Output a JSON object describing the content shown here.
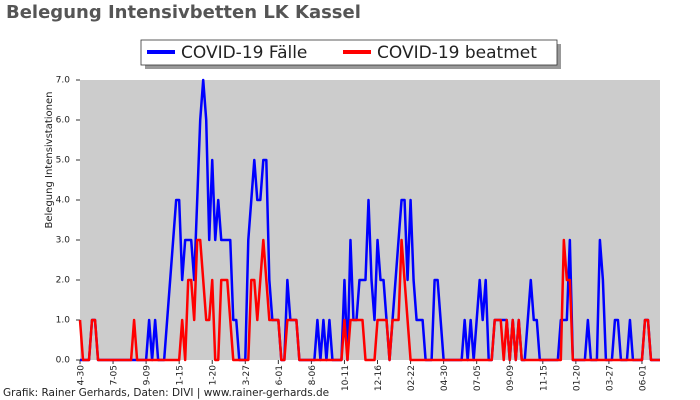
{
  "chart_data": {
    "type": "line",
    "title": "Belegung Intensivbetten LK Kassel",
    "y_label": "Belegung Intensivstationen",
    "footer": "Grafik: Rainer Gerhards, Daten: DIVI | www.rainer-gerhards.de",
    "ylim": [
      0,
      7
    ],
    "yticks": [
      {
        "value": 0,
        "label": "0.0"
      },
      {
        "value": 1,
        "label": "1.0"
      },
      {
        "value": 2,
        "label": "2.0"
      },
      {
        "value": 3,
        "label": "3.0"
      },
      {
        "value": 4,
        "label": "4.0"
      },
      {
        "value": 5,
        "label": "5.0"
      },
      {
        "value": 6,
        "label": "6.0"
      },
      {
        "value": 7,
        "label": "7.0"
      }
    ],
    "grid": false,
    "legend": "top",
    "categories": [
      "04-30",
      null,
      null,
      null,
      null,
      null,
      null,
      null,
      null,
      null,
      null,
      "07-05",
      null,
      null,
      null,
      null,
      null,
      null,
      null,
      null,
      null,
      null,
      "09-09",
      null,
      null,
      null,
      null,
      null,
      null,
      null,
      null,
      null,
      null,
      "11-15",
      null,
      null,
      null,
      null,
      null,
      null,
      null,
      null,
      null,
      null,
      "01-20",
      null,
      null,
      null,
      null,
      null,
      null,
      null,
      null,
      null,
      null,
      "03-27",
      null,
      null,
      null,
      null,
      null,
      null,
      null,
      null,
      null,
      null,
      "06-01",
      null,
      null,
      null,
      null,
      null,
      null,
      null,
      null,
      null,
      null,
      "08-06",
      null,
      null,
      null,
      null,
      null,
      null,
      null,
      null,
      null,
      null,
      "10-11",
      null,
      null,
      null,
      null,
      null,
      null,
      null,
      null,
      null,
      null,
      "12-16",
      null,
      null,
      null,
      null,
      null,
      null,
      null,
      null,
      null,
      null,
      "02-22",
      null,
      null,
      null,
      null,
      null,
      null,
      null,
      null,
      null,
      null,
      "04-30",
      null,
      null,
      null,
      null,
      null,
      null,
      null,
      null,
      null,
      null,
      "07-05",
      null,
      null,
      null,
      null,
      null,
      null,
      null,
      null,
      null,
      null,
      "09-09",
      null,
      null,
      null,
      null,
      null,
      null,
      null,
      null,
      null,
      null,
      "11-15",
      null,
      null,
      null,
      null,
      null,
      null,
      null,
      null,
      null,
      null,
      "01-20",
      null,
      null,
      null,
      null,
      null,
      null,
      null,
      null,
      null,
      null,
      "03-27",
      null,
      null,
      null,
      null,
      null,
      null,
      null,
      null,
      null,
      null,
      "06-01",
      null,
      null,
      null,
      null,
      null,
      null
    ],
    "series": [
      {
        "name": "COVID-19 Fälle",
        "color": "#0000ff",
        "values": [
          0,
          0,
          0,
          0,
          1,
          1,
          0,
          0,
          0,
          0,
          0,
          0,
          0,
          0,
          0,
          0,
          0,
          0,
          0,
          0,
          0,
          0,
          0,
          1,
          0,
          1,
          0,
          0,
          0,
          1,
          2,
          3,
          4,
          4,
          2,
          3,
          3,
          3,
          2,
          4,
          6,
          7,
          6,
          3,
          5,
          3,
          4,
          3,
          3,
          3,
          3,
          1,
          1,
          0,
          0,
          0,
          3,
          4,
          5,
          4,
          4,
          5,
          5,
          2,
          1,
          1,
          1,
          0,
          0,
          2,
          1,
          1,
          1,
          0,
          0,
          0,
          0,
          0,
          0,
          1,
          0,
          1,
          0,
          1,
          0,
          0,
          0,
          0,
          2,
          0,
          3,
          1,
          1,
          2,
          2,
          2,
          4,
          2,
          1,
          3,
          2,
          2,
          1,
          0,
          1,
          2,
          3,
          4,
          4,
          2,
          4,
          2,
          1,
          1,
          1,
          0,
          0,
          0,
          2,
          2,
          1,
          0,
          0,
          0,
          0,
          0,
          0,
          0,
          1,
          0,
          1,
          0,
          1,
          2,
          1,
          2,
          0,
          0,
          1,
          1,
          1,
          1,
          1,
          0,
          1,
          0,
          1,
          0,
          0,
          1,
          2,
          1,
          1,
          0,
          0,
          0,
          0,
          0,
          0,
          0,
          1,
          1,
          1,
          3,
          0,
          0,
          0,
          0,
          0,
          1,
          0,
          0,
          0,
          3,
          2,
          0,
          0,
          0,
          1,
          1,
          0,
          0,
          0,
          1,
          0,
          0,
          0,
          0,
          1,
          1,
          0,
          0,
          0,
          0
        ]
      },
      {
        "name": "COVID-19 beatmet",
        "color": "#ff0000",
        "values": [
          1,
          0,
          0,
          0,
          1,
          1,
          0,
          0,
          0,
          0,
          0,
          0,
          0,
          0,
          0,
          0,
          0,
          0,
          1,
          0,
          0,
          0,
          0,
          0,
          0,
          0,
          0,
          0,
          0,
          0,
          0,
          0,
          0,
          0,
          1,
          0,
          2,
          2,
          1,
          3,
          3,
          2,
          1,
          1,
          2,
          0,
          0,
          2,
          2,
          2,
          1,
          0,
          0,
          0,
          0,
          0,
          0,
          2,
          2,
          1,
          2,
          3,
          2,
          1,
          1,
          1,
          1,
          0,
          0,
          1,
          1,
          1,
          1,
          0,
          0,
          0,
          0,
          0,
          0,
          0,
          0,
          0,
          0,
          0,
          0,
          0,
          0,
          0,
          1,
          0,
          1,
          1,
          1,
          1,
          1,
          0,
          0,
          0,
          0,
          1,
          1,
          1,
          1,
          0,
          1,
          1,
          1,
          3,
          2,
          1,
          0,
          0,
          0,
          0,
          0,
          0,
          0,
          0,
          0,
          0,
          0,
          0,
          0,
          0,
          0,
          0,
          0,
          0,
          0,
          0,
          0,
          0,
          0,
          0,
          0,
          0,
          0,
          0,
          1,
          1,
          1,
          0,
          1,
          0,
          1,
          0,
          1,
          0,
          0,
          0,
          0,
          0,
          0,
          0,
          0,
          0,
          0,
          0,
          0,
          0,
          0,
          3,
          2,
          2,
          0,
          0,
          0,
          0,
          0,
          0,
          0,
          0,
          0,
          0,
          0,
          0,
          0,
          0,
          0,
          0,
          0,
          0,
          0,
          0,
          0,
          0,
          0,
          0,
          1,
          1,
          0,
          0,
          0,
          0
        ]
      }
    ]
  }
}
